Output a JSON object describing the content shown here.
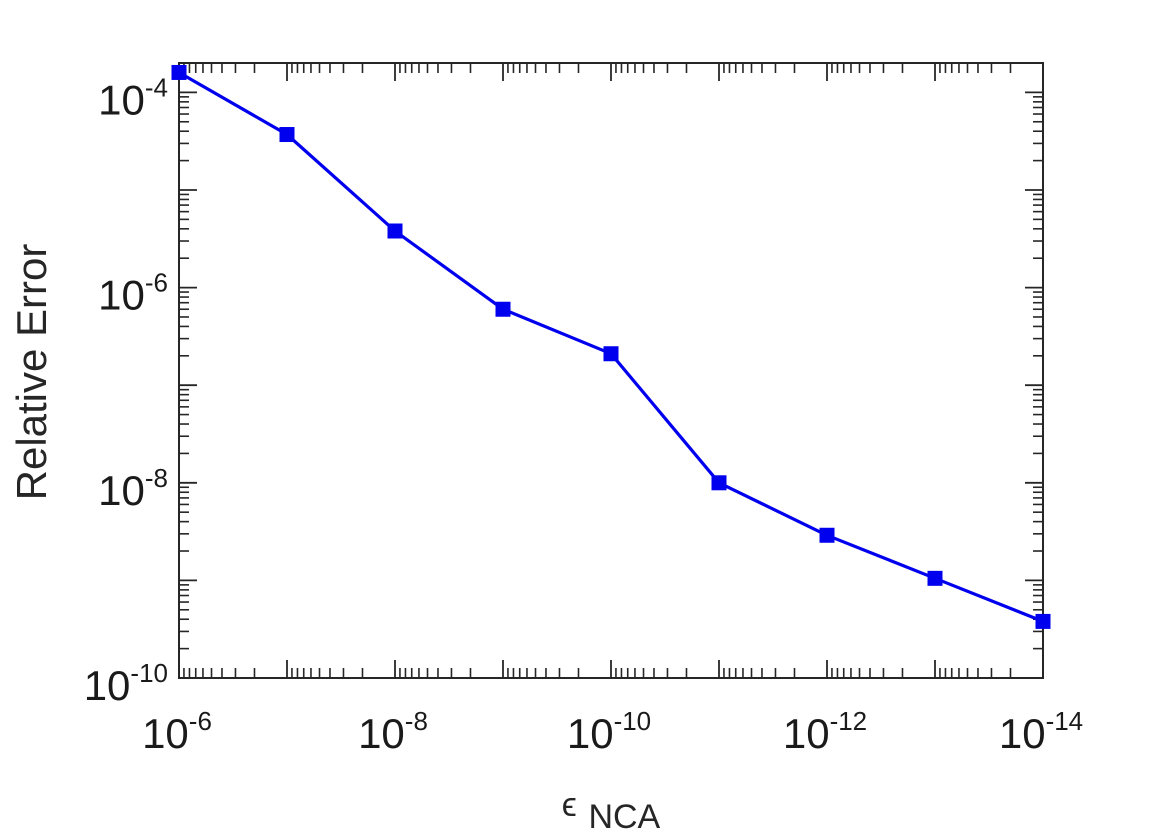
{
  "chart_data": {
    "type": "line",
    "title": "",
    "xlabel": {
      "symbol": "ϵ",
      "subscript": "NCA"
    },
    "ylabel": "Relative Error",
    "xscale": "log",
    "yscale": "log",
    "x_reversed": true,
    "xlim": [
      1e-06,
      1e-14
    ],
    "ylim": [
      1e-10,
      0.0002
    ],
    "x_ticks": [
      {
        "value": 1e-06,
        "base": "10",
        "exp": "-6"
      },
      {
        "value": 1e-08,
        "base": "10",
        "exp": "-8"
      },
      {
        "value": 1e-10,
        "base": "10",
        "exp": "-10"
      },
      {
        "value": 1e-12,
        "base": "10",
        "exp": "-12"
      },
      {
        "value": 1e-14,
        "base": "10",
        "exp": "-14"
      }
    ],
    "y_ticks": [
      {
        "value": 0.0001,
        "base": "10",
        "exp": "-4"
      },
      {
        "value": 1e-06,
        "base": "10",
        "exp": "-6"
      },
      {
        "value": 1e-08,
        "base": "10",
        "exp": "-8"
      },
      {
        "value": 1e-10,
        "base": "10",
        "exp": "-10"
      }
    ],
    "grid": false,
    "box": true,
    "series": [
      {
        "color": "#0000ee",
        "marker": "square",
        "x": [
          1e-06,
          1e-07,
          1e-08,
          1e-09,
          1e-10,
          1e-11,
          1e-12,
          1e-13,
          1e-14
        ],
        "y": [
          0.00016,
          3.7e-05,
          3.8e-06,
          6e-07,
          2.1e-07,
          1e-08,
          2.9e-09,
          1.05e-09,
          3.8e-10
        ]
      }
    ]
  }
}
